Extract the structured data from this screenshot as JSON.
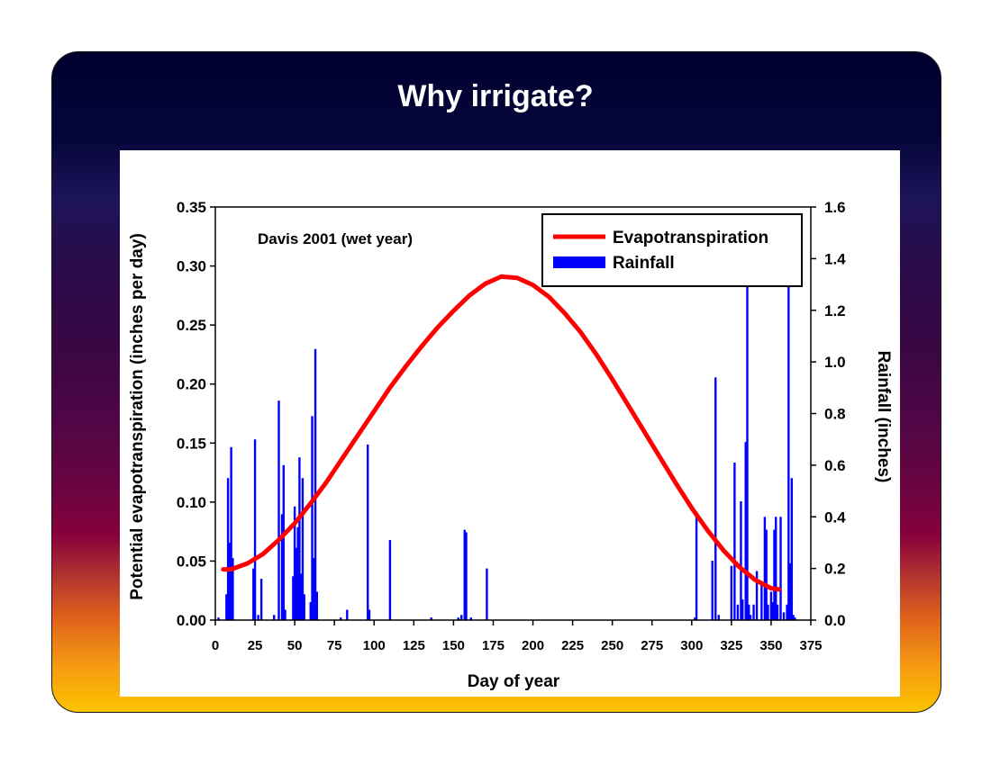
{
  "slide": {
    "title": "Why irrigate?"
  },
  "chart_data": {
    "type": "bar+line",
    "annotation": "Davis 2001 (wet year)",
    "xlabel": "Day of year",
    "ylabel_left": "Potential evapotranspiration (inches per day)",
    "ylabel_right": "Rainfall (inches)",
    "xlim": [
      0,
      375
    ],
    "ylim_left": [
      0,
      0.35
    ],
    "ylim_right": [
      0,
      1.6
    ],
    "x_ticks": [
      "0",
      "25",
      "50",
      "75",
      "100",
      "125",
      "150",
      "175",
      "200",
      "225",
      "250",
      "275",
      "300",
      "325",
      "350",
      "375"
    ],
    "y_left_ticks": [
      "0.00",
      "0.05",
      "0.10",
      "0.15",
      "0.20",
      "0.25",
      "0.30",
      "0.35"
    ],
    "y_right_ticks": [
      "0.0",
      "0.2",
      "0.4",
      "0.6",
      "0.8",
      "1.0",
      "1.2",
      "1.4",
      "1.6"
    ],
    "legend": {
      "placement": "top-right",
      "entries": [
        "Evapotranspiration",
        "Rainfall"
      ]
    },
    "colors": {
      "evapotranspiration": "#ff0000",
      "rainfall": "#0000ff"
    },
    "series": [
      {
        "name": "Evapotranspiration",
        "axis": "left",
        "x": [
          5,
          10,
          20,
          30,
          40,
          50,
          60,
          70,
          80,
          90,
          100,
          110,
          120,
          130,
          140,
          150,
          160,
          170,
          180,
          190,
          200,
          210,
          220,
          230,
          240,
          250,
          260,
          270,
          280,
          290,
          300,
          310,
          320,
          330,
          340,
          350,
          355
        ],
        "values": [
          0.043,
          0.043,
          0.048,
          0.056,
          0.068,
          0.082,
          0.099,
          0.117,
          0.137,
          0.157,
          0.177,
          0.197,
          0.215,
          0.232,
          0.248,
          0.262,
          0.275,
          0.285,
          0.291,
          0.29,
          0.284,
          0.274,
          0.26,
          0.244,
          0.225,
          0.204,
          0.182,
          0.16,
          0.138,
          0.116,
          0.095,
          0.076,
          0.059,
          0.045,
          0.034,
          0.027,
          0.026
        ]
      },
      {
        "name": "Rainfall",
        "axis": "right",
        "x": [
          2,
          7,
          8,
          9,
          10,
          11,
          24,
          25,
          27,
          29,
          37,
          40,
          42,
          43,
          44,
          49,
          50,
          51,
          52,
          53,
          54,
          55,
          56,
          60,
          61,
          62,
          63,
          64,
          79,
          83,
          96,
          97,
          110,
          136,
          153,
          155,
          157,
          158,
          161,
          171,
          302,
          303,
          313,
          315,
          317,
          325,
          327,
          329,
          331,
          332,
          334,
          335,
          336,
          337,
          339,
          341,
          344,
          346,
          347,
          348,
          350,
          351,
          352,
          353,
          354,
          356,
          358,
          360,
          361,
          362,
          363,
          364,
          365
        ],
        "values": [
          0.01,
          0.1,
          0.55,
          0.3,
          0.67,
          0.24,
          0.2,
          0.7,
          0.02,
          0.16,
          0.02,
          0.85,
          0.41,
          0.6,
          0.04,
          0.17,
          0.44,
          0.28,
          0.36,
          0.63,
          0.18,
          0.55,
          0.1,
          0.07,
          0.79,
          0.24,
          1.05,
          0.11,
          0.01,
          0.04,
          0.68,
          0.04,
          0.31,
          0.01,
          0.01,
          0.02,
          0.35,
          0.34,
          0.01,
          0.2,
          0.01,
          0.42,
          0.23,
          0.94,
          0.02,
          0.21,
          0.61,
          0.06,
          0.46,
          0.08,
          0.69,
          1.35,
          0.06,
          0.02,
          0.06,
          0.19,
          0.14,
          0.4,
          0.35,
          0.06,
          0.11,
          0.07,
          0.35,
          0.4,
          0.06,
          0.4,
          0.03,
          0.06,
          1.3,
          0.22,
          0.55,
          0.02,
          0.01
        ]
      }
    ]
  }
}
